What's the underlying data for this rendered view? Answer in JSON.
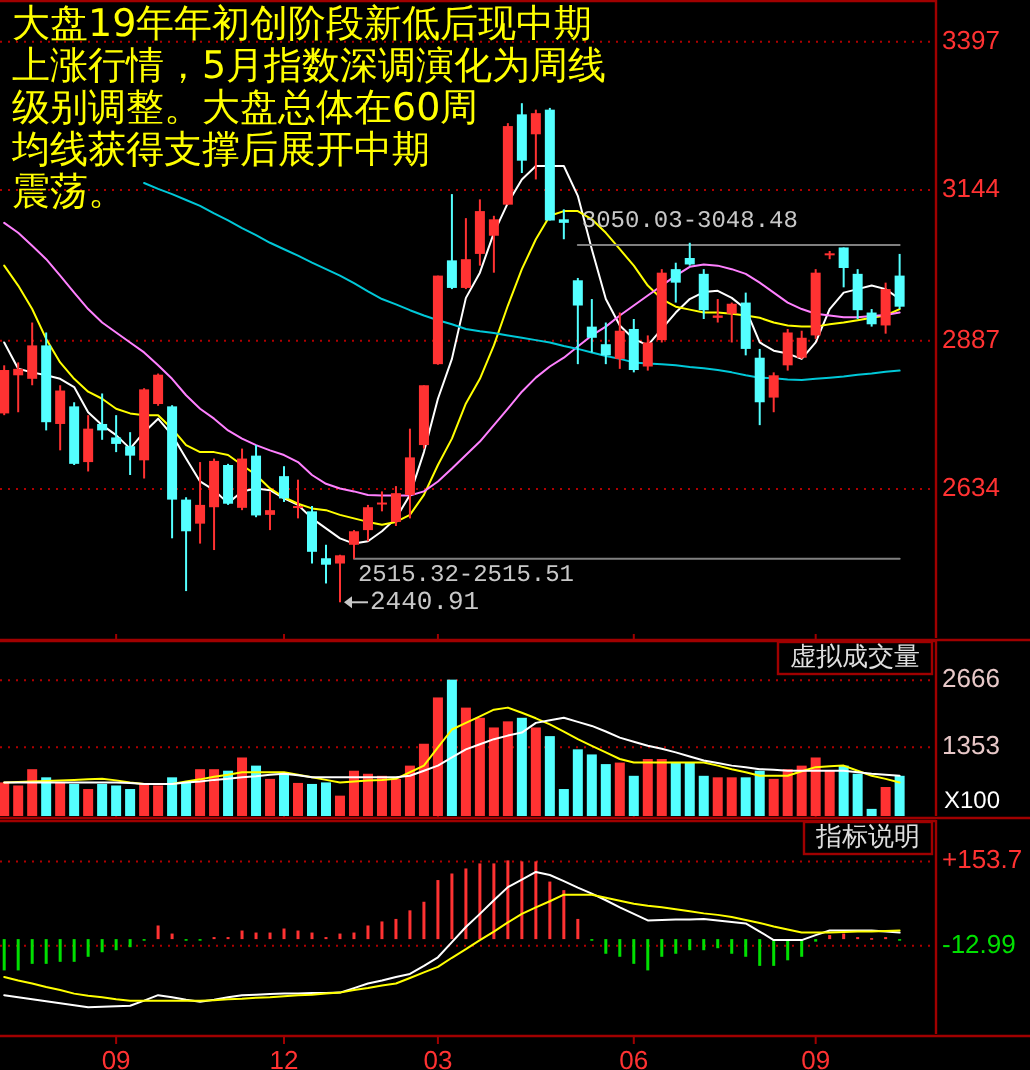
{
  "chart_data": [
    {
      "type": "candlestick",
      "title": "大盘19年年初创阶段新低后现中期上涨行情，5月指数深调演化为周线级别调整。大盘总体在60周均线获得支撑后展开中期震荡。",
      "categories": [
        null,
        null,
        null,
        null,
        null,
        null,
        null,
        null,
        "09",
        null,
        null,
        null,
        null,
        null,
        null,
        null,
        null,
        null,
        null,
        null,
        "12",
        null,
        null,
        null,
        null,
        null,
        null,
        null,
        null,
        null,
        null,
        "03",
        null,
        null,
        null,
        null,
        null,
        null,
        null,
        null,
        null,
        null,
        null,
        null,
        null,
        "06",
        null,
        null,
        null,
        null,
        null,
        null,
        null,
        null,
        null,
        null,
        null,
        null,
        "09",
        null,
        null,
        null,
        null,
        null,
        null
      ],
      "ohlc": [
        [
          2763,
          2845,
          2760,
          2837
        ],
        [
          2828,
          2850,
          2765,
          2839
        ],
        [
          2822,
          2918,
          2811,
          2879
        ],
        [
          2879,
          2901,
          2734,
          2748
        ],
        [
          2745,
          2811,
          2700,
          2802
        ],
        [
          2775,
          2782,
          2675,
          2677
        ],
        [
          2680,
          2760,
          2664,
          2737
        ],
        [
          2745,
          2797,
          2718,
          2734
        ],
        [
          2722,
          2760,
          2697,
          2711
        ],
        [
          2707,
          2731,
          2658,
          2691
        ],
        [
          2683,
          2806,
          2652,
          2804
        ],
        [
          2779,
          2831,
          2776,
          2829
        ],
        [
          2775,
          2777,
          2550,
          2616
        ],
        [
          2616,
          2620,
          2460,
          2562
        ],
        [
          2575,
          2680,
          2541,
          2607
        ],
        [
          2603,
          2686,
          2530,
          2682
        ],
        [
          2675,
          2677,
          2607,
          2609
        ],
        [
          2602,
          2703,
          2598,
          2686
        ],
        [
          2691,
          2709,
          2586,
          2589
        ],
        [
          2590,
          2630,
          2564,
          2598
        ],
        [
          2656,
          2673,
          2612,
          2618
        ],
        [
          2603,
          2650,
          2584,
          2605
        ],
        [
          2596,
          2605,
          2507,
          2527
        ],
        [
          2516,
          2539,
          2473,
          2505
        ],
        [
          2507,
          2522,
          2440.91,
          2521
        ],
        [
          2539,
          2564,
          2515,
          2562
        ],
        [
          2564,
          2607,
          2545,
          2603
        ],
        [
          2609,
          2630,
          2596,
          2611
        ],
        [
          2578,
          2639,
          2571,
          2627
        ],
        [
          2624,
          2737,
          2584,
          2688
        ],
        [
          2709,
          2811,
          2703,
          2811
        ],
        [
          2847,
          2998,
          2846,
          2998
        ],
        [
          3024,
          3137,
          2975,
          2977
        ],
        [
          2977,
          3096,
          2975,
          3026
        ],
        [
          3035,
          3128,
          3015,
          3108
        ],
        [
          3066,
          3100,
          3003,
          3094
        ],
        [
          3119,
          3258,
          3119,
          3253
        ],
        [
          3273,
          3292,
          3173,
          3194
        ],
        [
          3239,
          3281,
          3162,
          3275
        ],
        [
          3281,
          3284,
          3092,
          3092
        ],
        [
          3094,
          3111,
          3060,
          3088
        ],
        [
          2990,
          2994,
          2847,
          2947
        ],
        [
          2911,
          2958,
          2867,
          2892
        ],
        [
          2881,
          2918,
          2847,
          2862
        ],
        [
          2856,
          2935,
          2839,
          2904
        ],
        [
          2907,
          2924,
          2833,
          2837
        ],
        [
          2843,
          2896,
          2836,
          2884
        ],
        [
          2888,
          3009,
          2884,
          3003
        ],
        [
          3009,
          3020,
          2952,
          2986
        ],
        [
          3028,
          3054,
          3015,
          3017
        ],
        [
          3001,
          3009,
          2924,
          2939
        ],
        [
          2926,
          2958,
          2918,
          2930
        ],
        [
          2933,
          2952,
          2884,
          2950
        ],
        [
          2952,
          2969,
          2862,
          2873
        ],
        [
          2858,
          2873,
          2743,
          2782
        ],
        [
          2790,
          2833,
          2765,
          2828
        ],
        [
          2845,
          2907,
          2836,
          2901
        ],
        [
          2858,
          2904,
          2856,
          2892
        ],
        [
          2896,
          3009,
          2890,
          3003
        ],
        [
          3035,
          3040,
          3026,
          3036
        ],
        [
          3046,
          3046,
          2978,
          3011
        ],
        [
          3001,
          3009,
          2924,
          2939
        ],
        [
          2935,
          2941,
          2911,
          2915
        ],
        [
          2913,
          2986,
          2899,
          2975
        ],
        [
          2998,
          3035,
          2941,
          2945
        ]
      ],
      "colors": [
        "#ff3232",
        "#ff3232",
        "#ff3232",
        "#54ffff",
        "#ff3232",
        "#54ffff",
        "#ff3232",
        "#54ffff",
        "#54ffff",
        "#54ffff",
        "#ff3232",
        "#ff3232",
        "#54ffff",
        "#54ffff",
        "#ff3232",
        "#ff3232",
        "#54ffff",
        "#ff3232",
        "#54ffff",
        "#ff3232",
        "#54ffff",
        "#ff3232",
        "#54ffff",
        "#54ffff",
        "#ff3232",
        "#ff3232",
        "#ff3232",
        "#ff3232",
        "#ff3232",
        "#ff3232",
        "#ff3232",
        "#ff3232",
        "#54ffff",
        "#ff3232",
        "#ff3232",
        "#ff3232",
        "#ff3232",
        "#54ffff",
        "#ff3232",
        "#54ffff",
        "#54ffff",
        "#54ffff",
        "#54ffff",
        "#54ffff",
        "#ff3232",
        "#54ffff",
        "#ff3232",
        "#ff3232",
        "#54ffff",
        "#54ffff",
        "#54ffff",
        "#ff3232",
        "#ff3232",
        "#54ffff",
        "#54ffff",
        "#ff3232",
        "#ff3232",
        "#ff3232",
        "#ff3232",
        "#ff3232",
        "#54ffff",
        "#54ffff",
        "#54ffff",
        "#ff3232",
        "#54ffff"
      ],
      "series": [
        {
          "type": "line",
          "color": "#ffffff",
          "values": [
            2884,
            2839,
            2833,
            2828,
            2822,
            2808,
            2765,
            2743,
            2726,
            2703,
            2731,
            2754,
            2726,
            2686,
            2647,
            2632,
            2610,
            2630,
            2635,
            2632,
            2618,
            2607,
            2584,
            2567,
            2550,
            2541,
            2545,
            2562,
            2584,
            2624,
            2697,
            2788,
            2856,
            2960,
            3003,
            3071,
            3122,
            3162,
            3185,
            3185,
            3185,
            3134,
            3043,
            2958,
            2913,
            2890,
            2879,
            2907,
            2935,
            2958,
            2970,
            2972,
            2960,
            2941,
            2884,
            2870,
            2865,
            2856,
            2884,
            2941,
            2969,
            2975,
            2981,
            2975,
            2958
          ]
        },
        {
          "type": "line",
          "color": "#ffff00",
          "values": [
            3015,
            2981,
            2941,
            2890,
            2850,
            2822,
            2800,
            2788,
            2771,
            2763,
            2760,
            2760,
            2737,
            2709,
            2697,
            2697,
            2692,
            2675,
            2658,
            2635,
            2620,
            2609,
            2601,
            2598,
            2590,
            2584,
            2578,
            2573,
            2578,
            2590,
            2624,
            2675,
            2720,
            2780,
            2822,
            2879,
            2947,
            3009,
            3060,
            3100,
            3108,
            3108,
            3094,
            3071,
            3043,
            3015,
            2981,
            2958,
            2945,
            2940,
            2935,
            2935,
            2933,
            2930,
            2926,
            2918,
            2913,
            2911,
            2911,
            2915,
            2918,
            2922,
            2926,
            2930,
            2941
          ]
        },
        {
          "type": "line",
          "color": "#ff80ff",
          "values": [
            3088,
            3071,
            3049,
            3026,
            2998,
            2969,
            2941,
            2918,
            2901,
            2884,
            2867,
            2845,
            2822,
            2794,
            2771,
            2754,
            2734,
            2720,
            2709,
            2700,
            2692,
            2680,
            2658,
            2643,
            2635,
            2630,
            2624,
            2623,
            2623,
            2623,
            2630,
            2647,
            2669,
            2692,
            2715,
            2743,
            2771,
            2800,
            2824,
            2843,
            2858,
            2877,
            2896,
            2911,
            2930,
            2947,
            2964,
            2981,
            2998,
            3013,
            3017,
            3015,
            3009,
            3001,
            2986,
            2969,
            2952,
            2941,
            2933,
            2930,
            2927,
            2927,
            2929,
            2931,
            2935
          ]
        },
        {
          "type": "line",
          "color": "#00c8d8",
          "values": [
            null,
            null,
            null,
            null,
            null,
            null,
            null,
            null,
            null,
            null,
            3156,
            3146,
            3137,
            3127,
            3117,
            3104,
            3092,
            3079,
            3067,
            3054,
            3043,
            3032,
            3020,
            3009,
            2998,
            2985,
            2971,
            2958,
            2949,
            2939,
            2930,
            2922,
            2915,
            2907,
            2903,
            2900,
            2896,
            2892,
            2888,
            2884,
            2878,
            2873,
            2867,
            2861,
            2856,
            2850,
            2848,
            2847,
            2845,
            2842,
            2840,
            2837,
            2833,
            2828,
            2824,
            2823,
            2821,
            2820,
            2822,
            2824,
            2826,
            2829,
            2831,
            2834,
            2836
          ]
        },
        {
          "type": "line",
          "color": "#808080",
          "values": [
            null,
            null,
            null,
            null,
            null,
            null,
            null,
            null,
            null,
            null,
            null,
            null,
            null,
            null,
            null,
            null,
            null,
            null,
            null,
            null,
            null,
            null,
            null,
            null,
            null,
            null,
            null,
            null,
            null,
            null,
            null,
            null,
            null,
            null,
            null,
            null,
            null,
            null,
            null,
            null,
            null,
            3050,
            3050,
            3050,
            3050,
            3050,
            3050,
            3050,
            3050,
            3050,
            3050,
            3050,
            3050,
            3050,
            3050,
            3050,
            3050,
            3050,
            3050,
            3050,
            3050,
            3050,
            3050,
            3050,
            3050
          ]
        },
        {
          "type": "line",
          "color": "#808080",
          "values": [
            null,
            null,
            null,
            null,
            null,
            null,
            null,
            null,
            null,
            null,
            null,
            null,
            null,
            null,
            null,
            null,
            null,
            null,
            null,
            null,
            null,
            null,
            null,
            null,
            null,
            2515,
            2515,
            2515,
            2515,
            2515,
            2515,
            2515,
            2515,
            2515,
            2515,
            2515,
            2515,
            2515,
            2515,
            2515,
            2515,
            2515,
            2515,
            2515,
            2515,
            2515,
            2515,
            2515,
            2515,
            2515,
            2515,
            2515,
            2515,
            2515,
            2515,
            2515,
            2515,
            2515,
            2515,
            2515,
            2515,
            2515,
            2515,
            2515,
            2515
          ]
        }
      ],
      "ylim": [
        2380,
        3468
      ],
      "yticks": [
        3397,
        3144,
        2887,
        2634
      ],
      "tick_labels": "y",
      "grid": "y",
      "annotations": [
        {
          "text": "3050.03-3048.48",
          "y": 3050
        },
        {
          "text": "2515.32-2515.51",
          "y": 2515
        },
        "2440.91"
      ]
    },
    {
      "type": "bar",
      "categories": [
        null,
        null,
        null,
        null,
        null,
        null,
        null,
        null,
        "09",
        null,
        null,
        null,
        null,
        null,
        null,
        null,
        null,
        null,
        null,
        null,
        "12",
        null,
        null,
        null,
        null,
        null,
        null,
        null,
        null,
        null,
        null,
        "03",
        null,
        null,
        null,
        null,
        null,
        null,
        null,
        null,
        null,
        null,
        null,
        null,
        null,
        "06",
        null,
        null,
        null,
        null,
        null,
        null,
        null,
        null,
        null,
        null,
        null,
        null,
        "09",
        null,
        null,
        null,
        null,
        null,
        null
      ],
      "series": [
        {
          "type": "bar",
          "values": [
            660,
            600,
            920,
            760,
            660,
            630,
            530,
            630,
            600,
            530,
            630,
            600,
            760,
            660,
            920,
            920,
            890,
            1150,
            990,
            730,
            830,
            650,
            630,
            660,
            400,
            890,
            830,
            790,
            730,
            990,
            1420,
            2330,
            2680,
            2130,
            1930,
            1740,
            1860,
            1930,
            1740,
            1570,
            530,
            1310,
            1210,
            1020,
            1050,
            790,
            1120,
            1120,
            1050,
            1050,
            790,
            760,
            760,
            760,
            890,
            730,
            920,
            990,
            1150,
            890,
            990,
            830,
            140,
            570,
            790
          ],
          "colors": [
            "#ff3232",
            "#ff3232",
            "#ff3232",
            "#54ffff",
            "#ff3232",
            "#54ffff",
            "#ff3232",
            "#54ffff",
            "#54ffff",
            "#54ffff",
            "#ff3232",
            "#ff3232",
            "#54ffff",
            "#54ffff",
            "#ff3232",
            "#ff3232",
            "#54ffff",
            "#ff3232",
            "#54ffff",
            "#ff3232",
            "#54ffff",
            "#ff3232",
            "#54ffff",
            "#54ffff",
            "#ff3232",
            "#ff3232",
            "#ff3232",
            "#ff3232",
            "#ff3232",
            "#ff3232",
            "#ff3232",
            "#ff3232",
            "#54ffff",
            "#ff3232",
            "#ff3232",
            "#ff3232",
            "#ff3232",
            "#54ffff",
            "#ff3232",
            "#54ffff",
            "#54ffff",
            "#54ffff",
            "#54ffff",
            "#54ffff",
            "#ff3232",
            "#54ffff",
            "#ff3232",
            "#ff3232",
            "#54ffff",
            "#54ffff",
            "#54ffff",
            "#ff3232",
            "#ff3232",
            "#54ffff",
            "#54ffff",
            "#ff3232",
            "#ff3232",
            "#ff3232",
            "#ff3232",
            "#ff3232",
            "#54ffff",
            "#54ffff",
            "#54ffff",
            "#ff3232",
            "#54ffff"
          ]
        },
        {
          "type": "line",
          "color": "#ffff00",
          "values": [
            660,
            670,
            680,
            690,
            700,
            710,
            720,
            730,
            700,
            660,
            630,
            630,
            630,
            680,
            720,
            770,
            810,
            860,
            860,
            860,
            860,
            810,
            760,
            710,
            660,
            680,
            700,
            710,
            730,
            860,
            990,
            1350,
            1700,
            1830,
            1960,
            2090,
            2130,
            2030,
            1920,
            1800,
            1660,
            1510,
            1380,
            1250,
            1120,
            1050,
            1050,
            1050,
            1050,
            1050,
            1050,
            990,
            920,
            860,
            790,
            790,
            790,
            880,
            960,
            980,
            990,
            890,
            790,
            730,
            660
          ]
        },
        {
          "type": "line",
          "color": "#ffffff",
          "values": [
            660,
            660,
            660,
            660,
            660,
            660,
            660,
            660,
            660,
            650,
            630,
            630,
            630,
            660,
            680,
            710,
            730,
            760,
            780,
            810,
            830,
            800,
            760,
            760,
            760,
            760,
            760,
            760,
            760,
            790,
            890,
            990,
            1150,
            1310,
            1410,
            1510,
            1580,
            1640,
            1830,
            1880,
            1930,
            1850,
            1770,
            1660,
            1540,
            1460,
            1380,
            1320,
            1250,
            1170,
            1090,
            1040,
            990,
            960,
            920,
            910,
            890,
            890,
            890,
            890,
            890,
            860,
            830,
            810,
            790
          ]
        }
      ],
      "ylim": [
        0,
        3459
      ],
      "yticks": [
        2666,
        1353
      ],
      "ylabel": "X100",
      "tick_labels": "y",
      "grid": "y",
      "annotations": [
        "虚拟成交量"
      ]
    },
    {
      "type": "bar",
      "categories": [
        null,
        null,
        null,
        null,
        null,
        null,
        null,
        null,
        "09",
        null,
        null,
        null,
        null,
        null,
        null,
        null,
        null,
        null,
        null,
        null,
        "12",
        null,
        null,
        null,
        null,
        null,
        null,
        null,
        null,
        null,
        null,
        "03",
        null,
        null,
        null,
        null,
        null,
        null,
        null,
        null,
        null,
        null,
        null,
        null,
        null,
        "06",
        null,
        null,
        null,
        null,
        null,
        null,
        null,
        null,
        null,
        null,
        null,
        null,
        "09",
        null,
        null,
        null,
        null,
        null,
        null
      ],
      "series": [
        {
          "type": "bar",
          "values": [
            -62,
            -62,
            -49,
            -49,
            -45,
            -45,
            -35,
            -26,
            -22,
            -16,
            -3,
            27,
            11,
            -3,
            -3,
            4,
            4,
            17,
            13,
            13,
            21,
            17,
            13,
            4,
            11,
            13,
            27,
            35,
            40,
            57,
            74,
            117,
            130,
            140,
            150,
            150,
            156,
            154,
            154,
            114,
            97,
            40,
            -3,
            -29,
            -35,
            -49,
            -62,
            -35,
            -29,
            -22,
            -22,
            -18,
            -29,
            -35,
            -53,
            -53,
            -42,
            -35,
            -5,
            8,
            11,
            4,
            2,
            4,
            -3
          ],
          "colors": [
            "#00e000",
            "#00e000",
            "#00e000",
            "#00e000",
            "#00e000",
            "#00e000",
            "#00e000",
            "#00e000",
            "#00e000",
            "#00e000",
            "#00e000",
            "#ff3232",
            "#ff3232",
            "#00e000",
            "#00e000",
            "#ff3232",
            "#ff3232",
            "#ff3232",
            "#ff3232",
            "#ff3232",
            "#ff3232",
            "#ff3232",
            "#ff3232",
            "#ff3232",
            "#ff3232",
            "#ff3232",
            "#ff3232",
            "#ff3232",
            "#ff3232",
            "#ff3232",
            "#ff3232",
            "#ff3232",
            "#ff3232",
            "#ff3232",
            "#ff3232",
            "#ff3232",
            "#ff3232",
            "#ff3232",
            "#ff3232",
            "#ff3232",
            "#ff3232",
            "#ff3232",
            "#00e000",
            "#00e000",
            "#00e000",
            "#00e000",
            "#00e000",
            "#00e000",
            "#00e000",
            "#00e000",
            "#00e000",
            "#00e000",
            "#00e000",
            "#00e000",
            "#00e000",
            "#00e000",
            "#00e000",
            "#00e000",
            "#00e000",
            "#ff3232",
            "#ff3232",
            "#ff3232",
            "#ff3232",
            "#ff3232",
            "#00e000"
          ]
        },
        {
          "type": "line",
          "color": "#ffffff",
          "values": [
            -111,
            -115,
            -119,
            -123,
            -127,
            -131,
            -135,
            -134,
            -133,
            -132,
            -122,
            -111,
            -115,
            -120,
            -124,
            -120,
            -115,
            -111,
            -110,
            -109,
            -108,
            -108,
            -107,
            -107,
            -106,
            -97,
            -88,
            -82,
            -75,
            -69,
            -53,
            -36,
            -6,
            24,
            50,
            77,
            103,
            118,
            133,
            127,
            115,
            102,
            90,
            77,
            63,
            50,
            37,
            38,
            39,
            39,
            40,
            37,
            34,
            31,
            15,
            -2,
            -2,
            -2,
            8,
            17,
            17,
            17,
            17,
            15,
            13
          ]
        },
        {
          "type": "line",
          "color": "#ffff00",
          "values": [
            -75,
            -82,
            -88,
            -95,
            -101,
            -108,
            -112,
            -115,
            -119,
            -122,
            -122,
            -122,
            -122,
            -122,
            -122,
            -121,
            -119,
            -118,
            -116,
            -115,
            -113,
            -111,
            -110,
            -108,
            -106,
            -101,
            -97,
            -92,
            -88,
            -77,
            -66,
            -55,
            -37,
            -20,
            -2,
            15,
            33,
            50,
            63,
            75,
            88,
            88,
            88,
            82,
            76,
            70,
            66,
            63,
            59,
            55,
            51,
            48,
            44,
            38,
            32,
            25,
            19,
            13,
            13,
            13,
            14,
            15,
            15,
            16,
            17
          ]
        }
      ],
      "ylim": [
        -188,
        236
      ],
      "yticks": [
        {
          "value": 153.7,
          "label": "+153.7"
        },
        -12.99
      ],
      "grid": "y",
      "annotations": [
        "指标说明"
      ]
    }
  ]
}
